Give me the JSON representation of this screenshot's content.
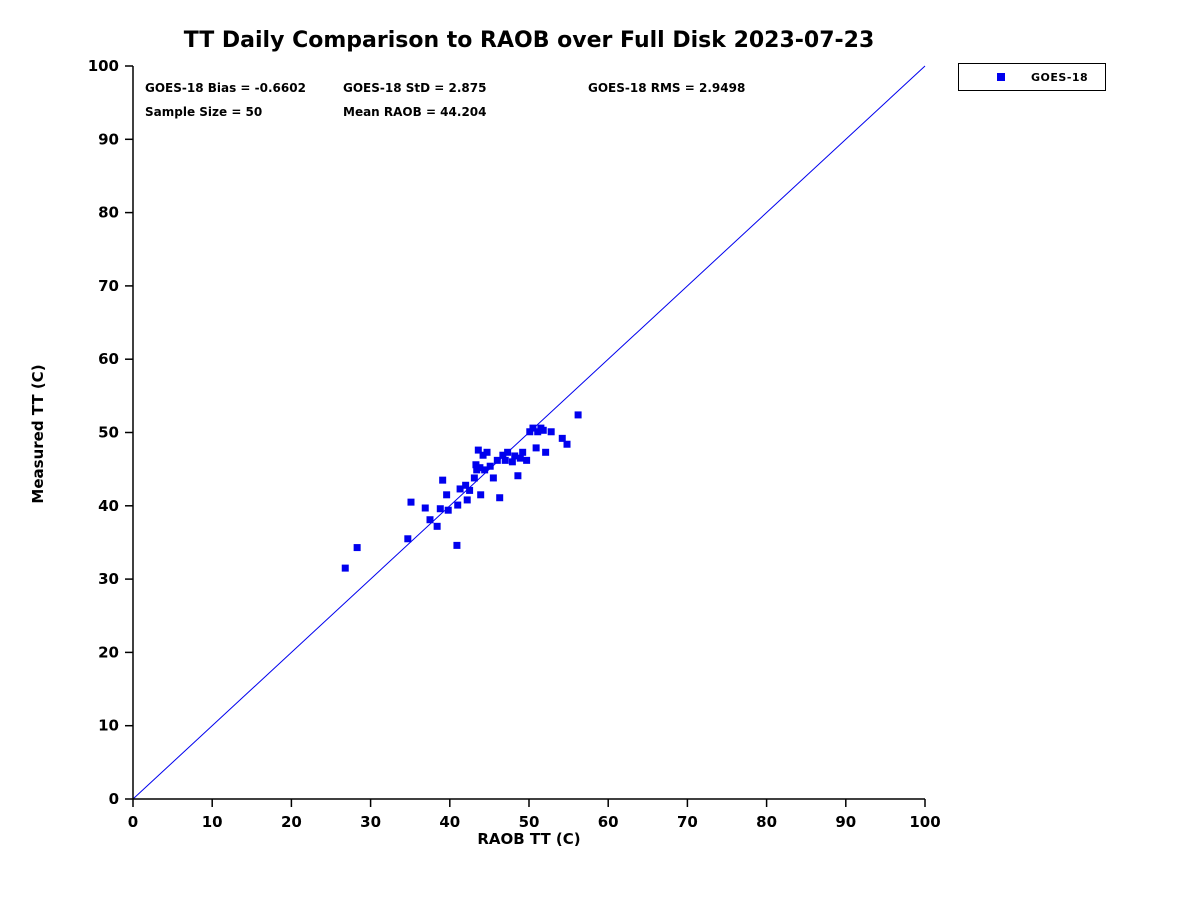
{
  "title": "TT Daily Comparison to RAOB over Full Disk 2023-07-23",
  "stats": {
    "bias": "GOES-18 Bias = -0.6602",
    "std": "GOES-18 StD = 2.875",
    "rms": "GOES-18 RMS = 2.9498",
    "sample_size": "Sample Size = 50",
    "mean_raob": "Mean RAOB = 44.204"
  },
  "legend": {
    "label": "GOES-18",
    "marker_color": "#0000ee"
  },
  "colors": {
    "marker": "#0000ee",
    "reference_line": "#0000ee",
    "axis": "#000000"
  },
  "chart_data": {
    "type": "scatter",
    "title": "TT Daily Comparison to RAOB over Full Disk 2023-07-23",
    "xlabel": "RAOB TT (C)",
    "ylabel": "Measured TT (C)",
    "xlim": [
      0,
      100
    ],
    "ylim": [
      0,
      100
    ],
    "xticks": [
      0,
      10,
      20,
      30,
      40,
      50,
      60,
      70,
      80,
      90,
      100
    ],
    "yticks": [
      0,
      10,
      20,
      30,
      40,
      50,
      60,
      70,
      80,
      90,
      100
    ],
    "grid": false,
    "legend_position": "top-right-outside",
    "reference_line": {
      "x": [
        0,
        100
      ],
      "y": [
        0,
        100
      ]
    },
    "series": [
      {
        "name": "GOES-18",
        "marker": "square",
        "color": "#0000ee",
        "points": [
          [
            26.8,
            31.5
          ],
          [
            28.3,
            34.3
          ],
          [
            34.7,
            35.5
          ],
          [
            35.1,
            40.5
          ],
          [
            36.9,
            39.7
          ],
          [
            37.5,
            38.1
          ],
          [
            38.4,
            37.2
          ],
          [
            38.8,
            39.6
          ],
          [
            39.1,
            43.5
          ],
          [
            39.6,
            41.5
          ],
          [
            39.8,
            39.4
          ],
          [
            40.9,
            34.6
          ],
          [
            41.0,
            40.1
          ],
          [
            41.3,
            42.3
          ],
          [
            42.0,
            42.8
          ],
          [
            42.2,
            40.8
          ],
          [
            42.5,
            42.1
          ],
          [
            43.1,
            43.8
          ],
          [
            43.3,
            45.6
          ],
          [
            43.4,
            44.9
          ],
          [
            43.6,
            47.6
          ],
          [
            43.8,
            45.2
          ],
          [
            43.9,
            41.5
          ],
          [
            44.2,
            46.9
          ],
          [
            44.4,
            44.9
          ],
          [
            44.7,
            47.3
          ],
          [
            45.1,
            45.4
          ],
          [
            45.5,
            43.8
          ],
          [
            46.0,
            46.2
          ],
          [
            46.3,
            41.1
          ],
          [
            46.7,
            46.9
          ],
          [
            47.0,
            46.2
          ],
          [
            47.3,
            47.3
          ],
          [
            47.9,
            46.0
          ],
          [
            48.2,
            46.8
          ],
          [
            48.6,
            44.1
          ],
          [
            48.9,
            46.5
          ],
          [
            49.2,
            47.3
          ],
          [
            49.7,
            46.2
          ],
          [
            50.1,
            50.1
          ],
          [
            50.5,
            50.6
          ],
          [
            50.9,
            47.9
          ],
          [
            51.1,
            50.1
          ],
          [
            51.5,
            50.6
          ],
          [
            51.8,
            50.3
          ],
          [
            52.1,
            47.3
          ],
          [
            52.8,
            50.1
          ],
          [
            54.2,
            49.2
          ],
          [
            54.8,
            48.4
          ],
          [
            56.2,
            52.4
          ]
        ]
      }
    ]
  }
}
